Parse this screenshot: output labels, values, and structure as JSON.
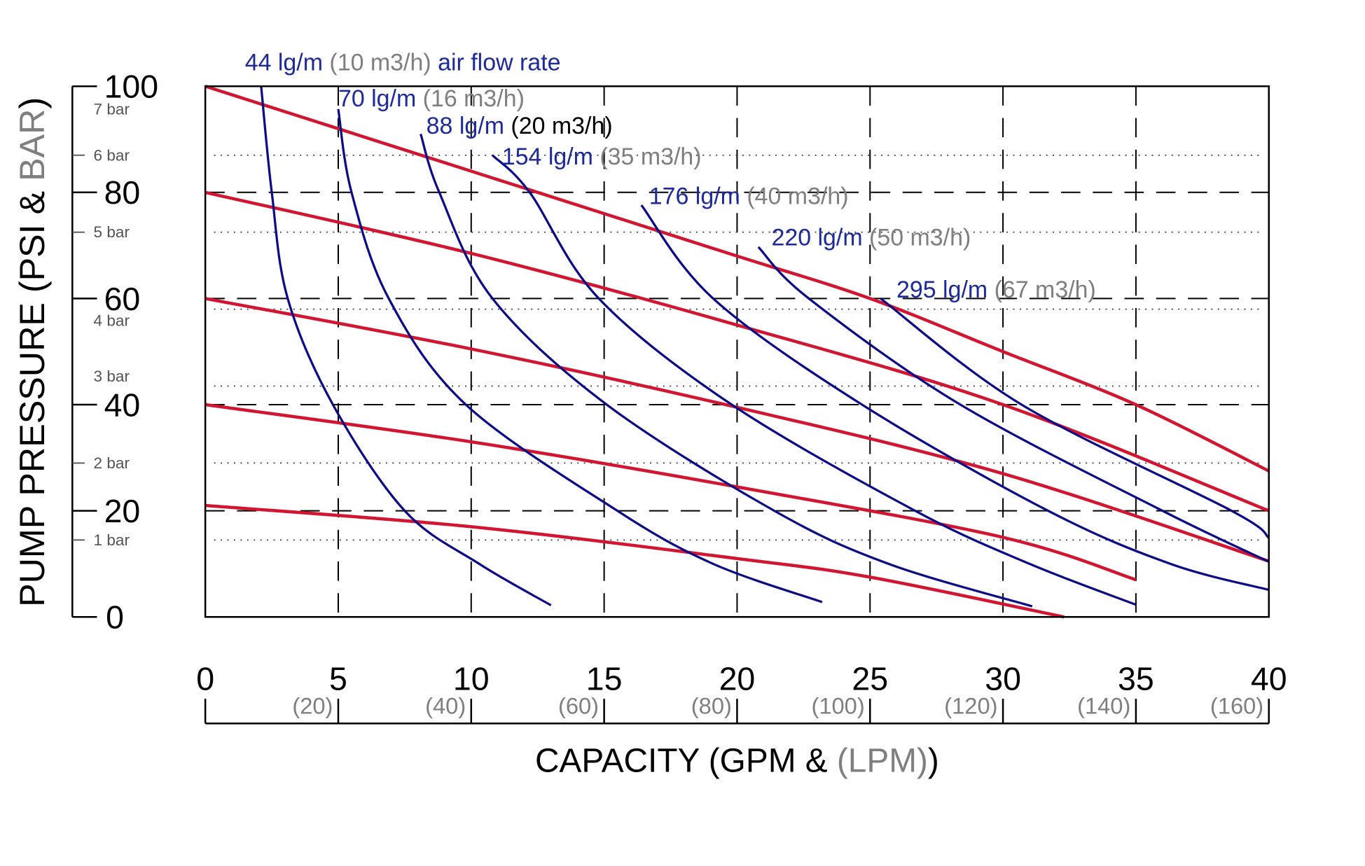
{
  "chart_data": {
    "type": "line",
    "title": "",
    "xlabel": {
      "main": "CAPACITY (GPM & ",
      "secondary": "(LPM)",
      "close": ")"
    },
    "ylabel": {
      "main": "PUMP PRESSURE (PSI & ",
      "secondary": "BAR",
      "close": ")"
    },
    "xlim": [
      0,
      40
    ],
    "ylim": [
      0,
      100
    ],
    "x_ticks": [
      0,
      5,
      10,
      15,
      20,
      25,
      30,
      35,
      40
    ],
    "x_secondary_ticks": [
      "(20)",
      "(40)",
      "(60)",
      "(80)",
      "(100)",
      "(120)",
      "(140)",
      "(160)"
    ],
    "y_ticks": [
      0,
      20,
      40,
      60,
      80,
      100
    ],
    "y_secondary_ticks": [
      "1 bar",
      "2 bar",
      "3 bar",
      "4 bar",
      "5 bar",
      "6 bar",
      "7 bar"
    ],
    "grid": {
      "major": "dashed",
      "bar_levels": "dotted"
    },
    "colors": {
      "pressure_curve": "#d21530",
      "air_curve": "#0c0c88",
      "label_blue": "#1c2a9c",
      "label_gray": "#7f7f7f",
      "axis": "#000000"
    },
    "pressure_curves": [
      {
        "points": [
          [
            0,
            100
          ],
          [
            5,
            92
          ],
          [
            10,
            84
          ],
          [
            15,
            76
          ],
          [
            20,
            68
          ],
          [
            25,
            60
          ],
          [
            30,
            50
          ],
          [
            35,
            40
          ],
          [
            40,
            27.5
          ]
        ]
      },
      {
        "points": [
          [
            0,
            80
          ],
          [
            10,
            68.5
          ],
          [
            20,
            55
          ],
          [
            30,
            40
          ],
          [
            40,
            20
          ]
        ]
      },
      {
        "points": [
          [
            0,
            60
          ],
          [
            10,
            50.5
          ],
          [
            20,
            39.5
          ],
          [
            30,
            27
          ],
          [
            40,
            10.5
          ]
        ]
      },
      {
        "points": [
          [
            0,
            40
          ],
          [
            10,
            33
          ],
          [
            20,
            24.5
          ],
          [
            30,
            15
          ],
          [
            35,
            7
          ]
        ]
      },
      {
        "points": [
          [
            0,
            21
          ],
          [
            10,
            17
          ],
          [
            20,
            11
          ],
          [
            25,
            7.5
          ],
          [
            32.3,
            0
          ]
        ]
      }
    ],
    "air_flow_curves": [
      {
        "label": "44 lg/m",
        "secondary": "(10 m3/h)",
        "suffix": "air flow rate",
        "secondary_color": "#7f7f7f",
        "points": [
          [
            2.1,
            100
          ],
          [
            2.5,
            80
          ],
          [
            3.1,
            60
          ],
          [
            4.8,
            40
          ],
          [
            7.5,
            20
          ],
          [
            10.3,
            10
          ],
          [
            13,
            2.2
          ]
        ]
      },
      {
        "label": "70 lg/m",
        "secondary": "(16 m3/h)",
        "secondary_color": "#7f7f7f",
        "points": [
          [
            5,
            95.7
          ],
          [
            5.5,
            80
          ],
          [
            6.9,
            60
          ],
          [
            9.8,
            40
          ],
          [
            15.5,
            20
          ],
          [
            19.1,
            10
          ],
          [
            23.2,
            2.8
          ]
        ]
      },
      {
        "label": "88 lg/m",
        "secondary": "(20 m3/h)",
        "secondary_color": "#000000",
        "points": [
          [
            8.1,
            91
          ],
          [
            8.8,
            80
          ],
          [
            10.8,
            60
          ],
          [
            15.1,
            40
          ],
          [
            21.4,
            20
          ],
          [
            25.7,
            10
          ],
          [
            31.1,
            2
          ]
        ]
      },
      {
        "label": "154 lg/m",
        "secondary": "(35 m3/h)",
        "secondary_color": "#7f7f7f",
        "points": [
          [
            10.8,
            87
          ],
          [
            12.2,
            80
          ],
          [
            14.8,
            60
          ],
          [
            19.8,
            40
          ],
          [
            26.7,
            20
          ],
          [
            31,
            10
          ],
          [
            35,
            2.3
          ]
        ]
      },
      {
        "label": "176 lg/m",
        "secondary": "(40 m3/h)",
        "secondary_color": "#7f7f7f",
        "points": [
          [
            16.4,
            77.6
          ],
          [
            19.1,
            60
          ],
          [
            24.7,
            40
          ],
          [
            31.7,
            20
          ],
          [
            36.3,
            10
          ],
          [
            40,
            5.1
          ]
        ]
      },
      {
        "label": "220 lg/m",
        "secondary": "(50 m3/h)",
        "secondary_color": "#7f7f7f",
        "points": [
          [
            20.8,
            69.7
          ],
          [
            22.7,
            60
          ],
          [
            28.4,
            40
          ],
          [
            36,
            20
          ],
          [
            40,
            10.4
          ]
        ]
      },
      {
        "label": "295 lg/m",
        "secondary": "(67 m3/h)",
        "secondary_color": "#7f7f7f",
        "points": [
          [
            25.4,
            60
          ],
          [
            30.7,
            40
          ],
          [
            38.6,
            20
          ],
          [
            40,
            14.9
          ]
        ]
      }
    ]
  }
}
